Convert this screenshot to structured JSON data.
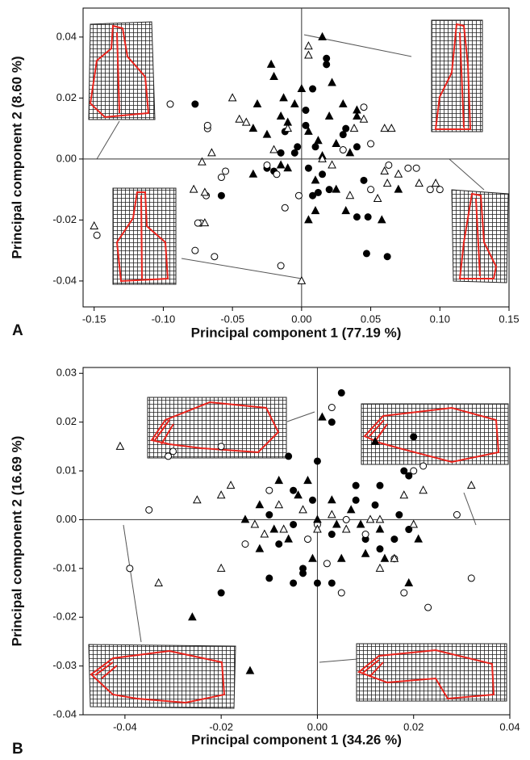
{
  "chart_data": [
    {
      "type": "scatter",
      "panel_label": "A",
      "xlabel": "Principal component 1 (77.19 %)",
      "ylabel": "Principal component 2 (8.60 %)",
      "xlim": [
        -0.158,
        0.15
      ],
      "ylim": [
        -0.0485,
        0.0495
      ],
      "xticks": [
        {
          "value": -0.15,
          "label": "-0.15"
        },
        {
          "value": -0.1,
          "label": "-0.10"
        },
        {
          "value": -0.05,
          "label": "-0.05"
        },
        {
          "value": 0,
          "label": "0.00"
        },
        {
          "value": 0.05,
          "label": "0.05"
        },
        {
          "value": 0.1,
          "label": "0.10"
        },
        {
          "value": 0.15,
          "label": "0.15"
        }
      ],
      "yticks": [
        {
          "value": -0.04,
          "label": "-0.04"
        },
        {
          "value": -0.02,
          "label": "-0.02"
        },
        {
          "value": 0,
          "label": "0.00"
        },
        {
          "value": 0.02,
          "label": "0.02"
        },
        {
          "value": 0.04,
          "label": "0.04"
        }
      ],
      "series": [
        {
          "marker": "circle",
          "filled": true,
          "color": "#000000",
          "x": [
            -0.077,
            0.008,
            0.018,
            0.018,
            -0.058,
            -0.025,
            -0.012,
            -0.003,
            0.003,
            0.003,
            -0.02,
            0.01,
            0.03,
            0.032,
            0.008,
            0.012,
            0.02,
            -0.015,
            0.04,
            0.045,
            0.048,
            0.047,
            0.062,
            0.04,
            -0.005,
            0.005,
            0.015
          ],
          "y": [
            0.018,
            0.023,
            0.031,
            0.033,
            -0.012,
            -0.003,
            0.009,
            0.004,
            0.016,
            0.011,
            -0.004,
            0.004,
            0.008,
            0.01,
            -0.012,
            -0.011,
            -0.01,
            0.002,
            0.004,
            -0.007,
            -0.019,
            -0.031,
            -0.032,
            -0.019,
            0.002,
            -0.003,
            -0.005
          ]
        },
        {
          "marker": "circle",
          "filled": false,
          "color": "#000000",
          "x": [
            -0.095,
            -0.068,
            -0.068,
            -0.055,
            -0.058,
            -0.069,
            -0.073,
            -0.075,
            -0.077,
            -0.063,
            -0.148,
            -0.012,
            -0.015,
            -0.025,
            -0.018,
            -0.002,
            0.03,
            0.045,
            0.05,
            0.05,
            0.063,
            0.083,
            0.077,
            0.1,
            0.093
          ],
          "y": [
            0.018,
            0.01,
            0.011,
            -0.004,
            -0.006,
            -0.012,
            -0.021,
            -0.021,
            -0.03,
            -0.032,
            -0.025,
            -0.016,
            -0.035,
            -0.002,
            -0.005,
            -0.012,
            0.003,
            0.017,
            0.005,
            -0.01,
            -0.002,
            -0.003,
            -0.003,
            -0.01,
            -0.01
          ]
        },
        {
          "marker": "triangle",
          "filled": true,
          "color": "#000000",
          "x": [
            -0.032,
            -0.022,
            -0.02,
            -0.013,
            -0.005,
            0.0,
            0.015,
            0.022,
            0.03,
            0.04,
            0.04,
            0.02,
            -0.035,
            -0.025,
            -0.015,
            -0.01,
            0.005,
            0.012,
            0.025,
            0.035,
            0.015,
            -0.035,
            -0.015,
            0.01,
            0.025,
            0.032,
            0.058,
            0.07,
            -0.01,
            0.005,
            0.01
          ],
          "y": [
            0.018,
            0.031,
            0.027,
            0.02,
            0.018,
            0.023,
            0.04,
            0.025,
            0.018,
            0.016,
            0.014,
            0.014,
            0.01,
            0.008,
            0.014,
            0.012,
            0.009,
            0.006,
            0.005,
            0.002,
            0.001,
            -0.005,
            -0.002,
            -0.007,
            -0.01,
            -0.017,
            -0.02,
            -0.01,
            -0.003,
            -0.02,
            -0.017
          ]
        },
        {
          "marker": "triangle",
          "filled": false,
          "color": "#000000",
          "x": [
            -0.05,
            -0.04,
            -0.045,
            -0.065,
            -0.072,
            -0.07,
            -0.078,
            -0.07,
            -0.15,
            0.0,
            -0.01,
            0.005,
            0.005,
            0.015,
            0.038,
            0.045,
            0.06,
            0.065,
            0.06,
            0.055,
            0.062,
            0.07,
            0.085,
            0.097,
            -0.02,
            0.022,
            0.035
          ],
          "y": [
            0.02,
            0.012,
            0.013,
            0.002,
            -0.001,
            -0.011,
            -0.01,
            -0.021,
            -0.022,
            -0.04,
            0.01,
            0.037,
            0.034,
            0.0,
            0.01,
            0.013,
            0.01,
            0.01,
            -0.004,
            -0.013,
            -0.008,
            -0.005,
            -0.008,
            -0.008,
            0.003,
            -0.002,
            -0.012
          ]
        }
      ]
    },
    {
      "type": "scatter",
      "panel_label": "B",
      "xlabel": "Principal component 1 (34.26 %)",
      "ylabel": "Principal component 2 (16.69 %)",
      "xlim": [
        -0.0487,
        0.04
      ],
      "ylim": [
        -0.04,
        0.0312
      ],
      "xticks": [
        {
          "value": -0.04,
          "label": "-0.04"
        },
        {
          "value": -0.02,
          "label": "-0.02"
        },
        {
          "value": 0,
          "label": "0.00"
        },
        {
          "value": 0.02,
          "label": "0.02"
        },
        {
          "value": 0.04,
          "label": "0.04"
        }
      ],
      "yticks": [
        {
          "value": -0.04,
          "label": "-0.04"
        },
        {
          "value": -0.03,
          "label": "-0.03"
        },
        {
          "value": -0.02,
          "label": "-0.02"
        },
        {
          "value": -0.01,
          "label": "-0.01"
        },
        {
          "value": 0,
          "label": "0.00"
        },
        {
          "value": 0.01,
          "label": "0.01"
        },
        {
          "value": 0.02,
          "label": "0.02"
        },
        {
          "value": 0.03,
          "label": "0.03"
        }
      ],
      "series": [
        {
          "marker": "circle",
          "filled": true,
          "color": "#000000",
          "x": [
            0.005,
            0.003,
            -0.006,
            0.0,
            0.008,
            0.013,
            0.018,
            0.019,
            0.02,
            0.008,
            0.012,
            0.017,
            0.019,
            0.016,
            0.01,
            0.003,
            -0.005,
            -0.01,
            -0.005,
            -0.001,
            -0.008,
            -0.003,
            -0.003,
            0.0,
            -0.01,
            -0.005,
            -0.02,
            0.003,
            0.013
          ],
          "y": [
            0.026,
            0.02,
            0.013,
            0.012,
            0.007,
            0.007,
            0.01,
            0.009,
            0.017,
            0.004,
            0.003,
            0.001,
            -0.002,
            -0.004,
            -0.004,
            -0.003,
            -0.001,
            0.001,
            0.006,
            0.004,
            -0.005,
            -0.01,
            -0.011,
            -0.013,
            -0.012,
            -0.013,
            -0.015,
            -0.013,
            -0.006
          ]
        },
        {
          "marker": "circle",
          "filled": false,
          "color": "#000000",
          "x": [
            0.003,
            -0.031,
            -0.03,
            -0.02,
            -0.035,
            -0.039,
            -0.01,
            0.006,
            0.0,
            0.01,
            0.018,
            0.023,
            0.029,
            0.032,
            0.02,
            0.022,
            0.016,
            0.002,
            -0.002,
            0.005,
            -0.015
          ],
          "y": [
            0.023,
            0.013,
            0.014,
            0.015,
            0.002,
            -0.01,
            0.006,
            0.0,
            -0.001,
            -0.003,
            -0.015,
            -0.018,
            0.001,
            -0.012,
            0.01,
            0.011,
            -0.008,
            -0.009,
            -0.004,
            -0.015,
            -0.005
          ]
        },
        {
          "marker": "triangle",
          "filled": true,
          "color": "#000000",
          "x": [
            0.001,
            0.012,
            -0.002,
            -0.008,
            -0.004,
            0.0,
            0.003,
            0.007,
            0.013,
            0.019,
            0.021,
            -0.012,
            -0.015,
            -0.009,
            -0.006,
            -0.012,
            0.005,
            0.01,
            0.014,
            -0.026,
            -0.014,
            -0.001,
            0.004,
            0.009
          ],
          "y": [
            0.021,
            0.016,
            0.008,
            0.008,
            0.005,
            0.0,
            0.004,
            0.002,
            -0.002,
            -0.013,
            -0.004,
            0.003,
            0.0,
            -0.002,
            -0.004,
            -0.006,
            -0.008,
            -0.007,
            -0.008,
            -0.02,
            -0.031,
            -0.008,
            -0.001,
            -0.001
          ]
        },
        {
          "marker": "triangle",
          "filled": false,
          "color": "#000000",
          "x": [
            -0.041,
            -0.033,
            -0.02,
            -0.025,
            -0.018,
            -0.02,
            -0.013,
            -0.011,
            -0.007,
            -0.003,
            0.0,
            0.003,
            0.006,
            0.011,
            0.013,
            0.016,
            0.018,
            0.022,
            0.02,
            0.032,
            0.013,
            -0.008
          ],
          "y": [
            0.015,
            -0.013,
            -0.01,
            0.004,
            0.007,
            0.005,
            -0.001,
            -0.003,
            -0.002,
            0.002,
            -0.002,
            0.001,
            -0.002,
            0.0,
            -0.01,
            -0.008,
            0.005,
            0.006,
            -0.001,
            0.007,
            0.0,
            0.003
          ]
        }
      ]
    }
  ]
}
